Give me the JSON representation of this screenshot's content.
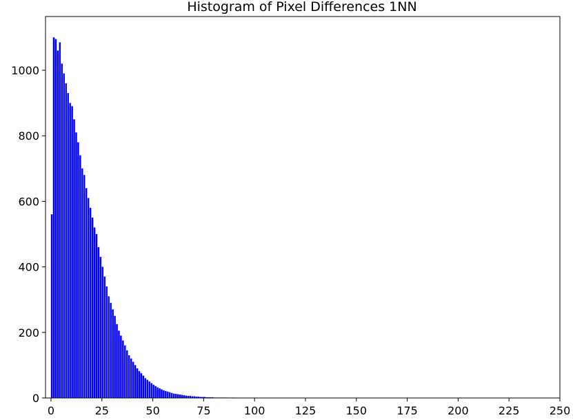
{
  "chart_data": {
    "type": "histogram",
    "title": "Histogram of Pixel Differences 1NN",
    "bins": [
      0,
      1,
      2,
      3,
      4,
      5,
      6,
      7,
      8,
      9,
      10,
      11,
      12,
      13,
      14,
      15,
      16,
      17,
      18,
      19,
      20,
      21,
      22,
      23,
      24,
      25,
      26,
      27,
      28,
      29,
      30,
      31,
      32,
      33,
      34,
      35,
      36,
      37,
      38,
      39,
      40,
      41,
      42,
      43,
      44,
      45,
      46,
      47,
      48,
      49,
      50,
      51,
      52,
      53,
      54,
      55,
      56,
      57,
      58,
      59,
      60,
      61,
      62,
      63,
      64,
      65,
      66,
      67,
      68,
      69,
      70,
      71,
      72,
      73,
      74,
      75,
      76,
      77,
      78,
      79,
      80,
      81,
      82,
      83,
      84,
      85,
      86,
      87,
      88,
      89,
      90
    ],
    "counts": [
      560,
      1100,
      1095,
      1060,
      1085,
      1020,
      990,
      960,
      930,
      900,
      890,
      850,
      810,
      780,
      740,
      700,
      680,
      640,
      610,
      580,
      550,
      520,
      500,
      460,
      430,
      400,
      370,
      340,
      310,
      290,
      270,
      250,
      225,
      205,
      190,
      175,
      160,
      145,
      130,
      120,
      110,
      100,
      90,
      82,
      75,
      68,
      60,
      55,
      50,
      45,
      40,
      36,
      32,
      29,
      26,
      23,
      21,
      19,
      17,
      15,
      13,
      12,
      11,
      10,
      9,
      8,
      7,
      6,
      6,
      5,
      5,
      4,
      4,
      3,
      3,
      3,
      2,
      2,
      2,
      2,
      1,
      1,
      1,
      1,
      1,
      1,
      1,
      1,
      0,
      1
    ],
    "color": "#0000ff",
    "xlim": [
      -2.7,
      250
    ],
    "ylim": [
      0,
      1164
    ],
    "xticks": [
      0,
      25,
      50,
      75,
      100,
      125,
      150,
      175,
      200,
      225,
      250
    ],
    "yticks": [
      0,
      200,
      400,
      600,
      800,
      1000
    ]
  }
}
